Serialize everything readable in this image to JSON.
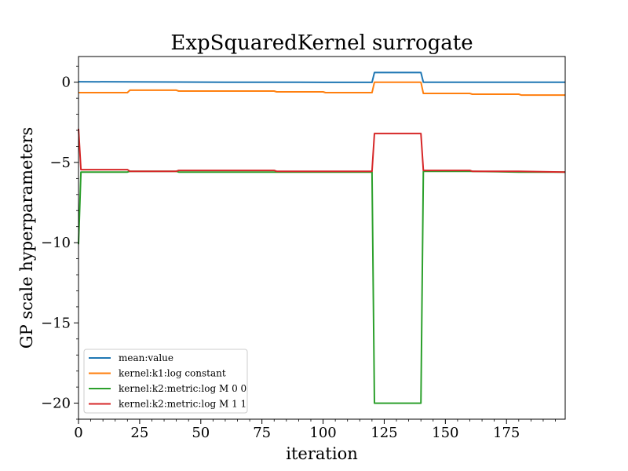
{
  "chart_data": {
    "type": "line",
    "title": "ExpSquaredKernel surrogate",
    "xlabel": "iteration",
    "ylabel": "GP scale hyperparameters",
    "xlim": [
      0,
      199
    ],
    "ylim": [
      -21,
      1.6
    ],
    "xticks": [
      0,
      25,
      50,
      75,
      100,
      125,
      150,
      175
    ],
    "yticks": [
      0,
      -5,
      -10,
      -15,
      -20
    ],
    "ytick_labels": [
      "0",
      "−5",
      "−10",
      "−15",
      "−20"
    ],
    "grid": false,
    "legend_position": "lower-left",
    "series": [
      {
        "name": "mean:value",
        "color": "#1f77b4",
        "points": [
          [
            0,
            0.03
          ],
          [
            20,
            0.02
          ],
          [
            40,
            0.01
          ],
          [
            60,
            0.0
          ],
          [
            80,
            0.0
          ],
          [
            100,
            -0.01
          ],
          [
            120,
            -0.01
          ],
          [
            121,
            0.6
          ],
          [
            140,
            0.6
          ],
          [
            141,
            0.0
          ],
          [
            160,
            0.0
          ],
          [
            180,
            0.0
          ],
          [
            199,
            0.0
          ]
        ]
      },
      {
        "name": "kernel:k1:log constant",
        "color": "#ff7f0e",
        "points": [
          [
            0,
            -0.65
          ],
          [
            20,
            -0.65
          ],
          [
            21,
            -0.5
          ],
          [
            40,
            -0.5
          ],
          [
            41,
            -0.55
          ],
          [
            80,
            -0.55
          ],
          [
            81,
            -0.6
          ],
          [
            100,
            -0.6
          ],
          [
            101,
            -0.65
          ],
          [
            120,
            -0.65
          ],
          [
            121,
            0.0
          ],
          [
            140,
            0.0
          ],
          [
            141,
            -0.7
          ],
          [
            160,
            -0.7
          ],
          [
            161,
            -0.75
          ],
          [
            180,
            -0.75
          ],
          [
            181,
            -0.8
          ],
          [
            199,
            -0.8
          ]
        ]
      },
      {
        "name": "kernel:k2:metric:log M 0 0",
        "color": "#2ca02c",
        "points": [
          [
            0,
            -10.1
          ],
          [
            1,
            -5.6
          ],
          [
            20,
            -5.6
          ],
          [
            21,
            -5.55
          ],
          [
            40,
            -5.55
          ],
          [
            41,
            -5.6
          ],
          [
            80,
            -5.6
          ],
          [
            120,
            -5.6
          ],
          [
            121,
            -20.0
          ],
          [
            140,
            -20.0
          ],
          [
            141,
            -5.55
          ],
          [
            160,
            -5.55
          ],
          [
            180,
            -5.6
          ],
          [
            199,
            -5.6
          ]
        ]
      },
      {
        "name": "kernel:k2:metric:log M 1 1",
        "color": "#d62728",
        "points": [
          [
            0,
            -2.9
          ],
          [
            1,
            -5.45
          ],
          [
            20,
            -5.45
          ],
          [
            21,
            -5.55
          ],
          [
            40,
            -5.55
          ],
          [
            41,
            -5.5
          ],
          [
            80,
            -5.5
          ],
          [
            81,
            -5.55
          ],
          [
            120,
            -5.55
          ],
          [
            121,
            -3.2
          ],
          [
            140,
            -3.2
          ],
          [
            141,
            -5.5
          ],
          [
            160,
            -5.5
          ],
          [
            161,
            -5.55
          ],
          [
            180,
            -5.55
          ],
          [
            199,
            -5.6
          ]
        ]
      }
    ]
  }
}
